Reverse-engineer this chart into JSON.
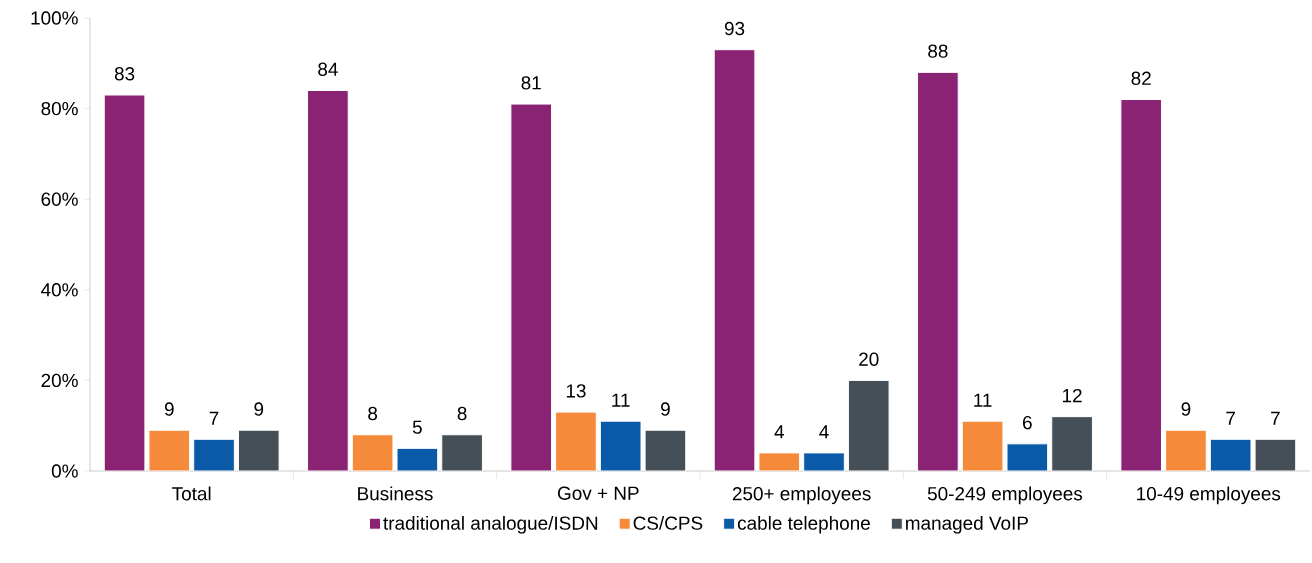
{
  "chart_data": {
    "type": "bar",
    "categories": [
      "Total",
      "Business",
      "Gov + NP",
      "250+ employees",
      "50-249 employees",
      "10-49 employees"
    ],
    "series": [
      {
        "name": "traditional analogue/ISDN",
        "color": "#8b2374",
        "values": [
          83,
          84,
          81,
          93,
          88,
          82
        ]
      },
      {
        "name": "CS/CPS",
        "color": "#f58a3a",
        "values": [
          9,
          8,
          13,
          4,
          11,
          9
        ]
      },
      {
        "name": "cable telephone",
        "color": "#0b5aa8",
        "values": [
          7,
          5,
          11,
          4,
          6,
          7
        ]
      },
      {
        "name": "managed VoIP",
        "color": "#454f57",
        "values": [
          9,
          8,
          9,
          20,
          12,
          7
        ]
      }
    ],
    "ylim": [
      0,
      100
    ],
    "yticks": [
      {
        "value": 0,
        "label": "0%"
      },
      {
        "value": 20,
        "label": "20%"
      },
      {
        "value": 40,
        "label": "40%"
      },
      {
        "value": 60,
        "label": "60%"
      },
      {
        "value": 80,
        "label": "80%"
      },
      {
        "value": 100,
        "label": "100%"
      }
    ],
    "data_labels": true,
    "legend": "bottom",
    "grid": false
  }
}
